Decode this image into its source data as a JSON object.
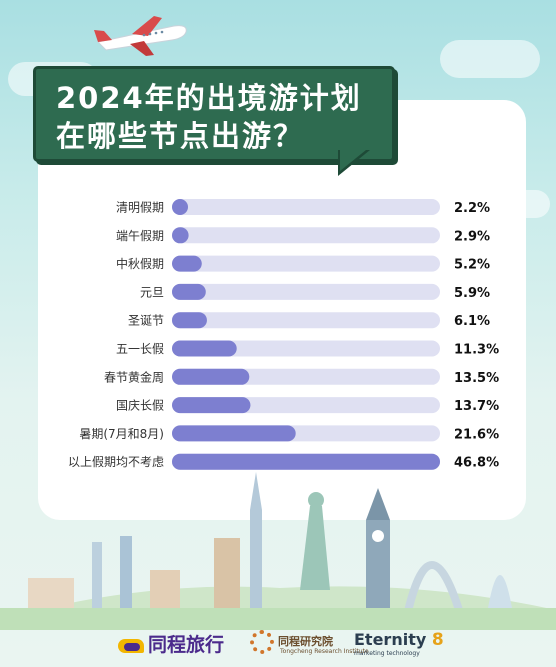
{
  "title": {
    "line1": "2024年的出境游计划",
    "line2": "在哪些节点出游？"
  },
  "chart_data": {
    "type": "bar",
    "orientation": "horizontal",
    "title": "2024年的出境游计划 在哪些节点出游？",
    "categories": [
      "清明假期",
      "端午假期",
      "中秋假期",
      "元旦",
      "圣诞节",
      "五一长假",
      "春节黄金周",
      "国庆长假",
      "暑期(7月和8月)",
      "以上假期均不考虑"
    ],
    "values": [
      2.2,
      2.9,
      5.2,
      5.9,
      6.1,
      11.3,
      13.5,
      13.7,
      21.6,
      46.8
    ],
    "value_labels": [
      "2.2%",
      "2.9%",
      "5.2%",
      "5.9%",
      "6.1%",
      "11.3%",
      "13.5%",
      "13.7%",
      "21.6%",
      "46.8%"
    ],
    "unit": "%",
    "xlim": [
      0,
      46.8
    ],
    "grid": false,
    "legend": "none",
    "colors": {
      "fill": "#7d7fd0",
      "track": "#dfe0f2"
    }
  },
  "footer": {
    "logo_tongcheng": "同程旅行",
    "logo_institute": "同程研究院",
    "logo_institute_sub": "Tongcheng Research Institute",
    "logo_eternity": "Eternity",
    "logo_eternity_mark": "8",
    "logo_eternity_sub": "marketing technology"
  },
  "icons": [
    "airplane-icon",
    "tongcheng-logo-icon",
    "institute-flower-icon",
    "eternity-logo-icon"
  ],
  "colors": {
    "title_bg": "#2e6b50",
    "sky": "#a9dfe2",
    "panel": "#ffffff"
  }
}
